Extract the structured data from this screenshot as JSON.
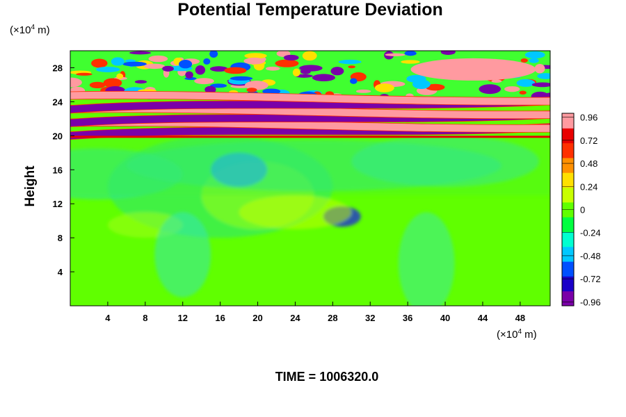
{
  "chart_data": {
    "type": "heatmap",
    "title": "Potential Temperature Deviation",
    "ylabel": "Height",
    "x_unit_base": "(×10",
    "x_unit_exp": "4",
    "x_unit_tail": " m)",
    "y_unit_base": "(×10",
    "y_unit_exp": "4",
    "y_unit_tail": " m)",
    "xlim": [
      0,
      51.2
    ],
    "ylim": [
      0,
      30
    ],
    "xticks": [
      4,
      8,
      12,
      16,
      20,
      24,
      28,
      32,
      36,
      40,
      44,
      48
    ],
    "yticks": [
      4,
      8,
      12,
      16,
      20,
      24,
      28
    ],
    "colorbar": {
      "range": [
        -1.0,
        1.0
      ],
      "tick_values": [
        0.96,
        0.72,
        0.48,
        0.24,
        0,
        -0.24,
        -0.48,
        -0.72,
        -0.96
      ],
      "tick_labels": [
        "0.96",
        "0.72",
        "0.48",
        "0.24",
        "0",
        "-0.24",
        "-0.48",
        "-0.72",
        "-0.96"
      ],
      "colors": [
        "#7a00a8",
        "#1a00c8",
        "#0050ff",
        "#00c8ff",
        "#00ffd0",
        "#00ff40",
        "#60ff00",
        "#c8ff00",
        "#ffe000",
        "#ff9000",
        "#ff3000",
        "#e80000",
        "#ff9aa0"
      ]
    },
    "bands": [
      {
        "y": 20.5,
        "value": -0.96
      },
      {
        "y": 21.2,
        "value": 0.96
      },
      {
        "y": 22.0,
        "value": -0.96
      },
      {
        "y": 22.8,
        "value": 0.96
      },
      {
        "y": 23.6,
        "value": -0.96
      },
      {
        "y": 24.4,
        "value": 0.96
      }
    ],
    "background_value": 0.05
  },
  "time_label": "TIME = 1006320.0"
}
